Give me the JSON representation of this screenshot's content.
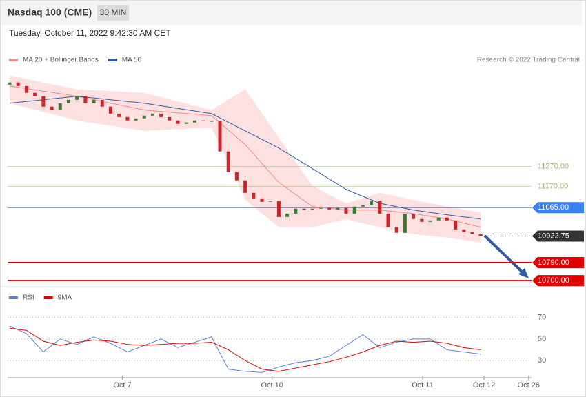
{
  "header": {
    "title": "Nasdaq 100 (CME)",
    "interval": "30 MIN",
    "timestamp": "Tuesday, October 11, 2022 9:42:30 AM CET",
    "credit": "Research © 2022 Trading Central"
  },
  "chart_data": [
    {
      "type": "candlestick",
      "xlim": [
        -0.25,
        62.05
      ],
      "ylim": [
        10690,
        11800
      ],
      "candles": {
        "open": [
          11680,
          11691,
          11673,
          11639,
          11622,
          11570,
          11553,
          11587,
          11604,
          11622,
          11587,
          11604,
          11570,
          11535,
          11518,
          11501,
          11511,
          11525,
          11535,
          11518,
          11501,
          11484,
          11491,
          11501,
          11498,
          11498,
          11346,
          11242,
          11201,
          11139,
          11111,
          11094,
          11098,
          11018,
          11035,
          11060,
          11053,
          11060,
          11063,
          11056,
          11063,
          11035,
          11070,
          11077,
          11098,
          11035,
          10967,
          10939,
          11035,
          11008,
          10994,
          11001,
          11015,
          11001,
          10956,
          10942,
          10932
        ],
        "close": [
          11691,
          11673,
          11639,
          11622,
          11570,
          11553,
          11587,
          11604,
          11622,
          11587,
          11604,
          11570,
          11535,
          11518,
          11501,
          11511,
          11525,
          11535,
          11518,
          11501,
          11484,
          11491,
          11501,
          11498,
          11498,
          11346,
          11242,
          11201,
          11139,
          11111,
          11094,
          11098,
          11018,
          11035,
          11060,
          11053,
          11060,
          11063,
          11056,
          11063,
          11035,
          11070,
          11077,
          11098,
          11035,
          10967,
          10939,
          11035,
          11008,
          10994,
          11001,
          11015,
          11001,
          10956,
          10942,
          10932,
          10923
        ],
        "up_color": "#3a7d34",
        "down_color": "#c9252b"
      },
      "bands": {
        "x": [
          0,
          8,
          16,
          24,
          28,
          32,
          36,
          40,
          44,
          48,
          52,
          56
        ],
        "upper": [
          11725,
          11656,
          11639,
          11553,
          11656,
          11415,
          11173,
          11087,
          11139,
          11104,
          11070,
          11042
        ],
        "lower": [
          11587,
          11501,
          11449,
          11466,
          11104,
          10967,
          10967,
          11008,
          10967,
          10932,
          10915,
          10891
        ],
        "color": "#fdd8d8"
      },
      "series": [
        {
          "name": "MA 20 + Bollinger Bands",
          "color": "#f08a8a",
          "x": [
            0,
            8,
            16,
            24,
            28,
            32,
            36,
            40,
            44,
            48,
            52,
            56
          ],
          "values": [
            11673,
            11622,
            11553,
            11525,
            11380,
            11191,
            11070,
            11053,
            11053,
            11035,
            11008,
            10967
          ]
        },
        {
          "name": "MA 50",
          "color": "#2f5b9e",
          "x": [
            0,
            8,
            16,
            24,
            28,
            32,
            36,
            40,
            44,
            48,
            52,
            56
          ],
          "values": [
            11587,
            11622,
            11587,
            11535,
            11449,
            11363,
            11260,
            11156,
            11087,
            11053,
            11029,
            11008
          ]
        }
      ],
      "levels": [
        {
          "value": 11270,
          "label": "11270.00",
          "color": "#9bbd73",
          "box": false
        },
        {
          "value": 11170,
          "label": "11170.00",
          "color": "#9bbd73",
          "box": false
        },
        {
          "value": 11065,
          "label": "11065.00",
          "color": "#3b82f0",
          "box": true
        },
        {
          "value": 10922.75,
          "label": "10922.75",
          "color": "#333333",
          "box": true
        },
        {
          "value": 10790,
          "label": "10790.00",
          "color": "#e00000",
          "box": true
        },
        {
          "value": 10700,
          "label": "10700.00",
          "color": "#e00000",
          "box": true
        }
      ]
    },
    {
      "type": "line",
      "xlim": [
        -0.25,
        62.05
      ],
      "ylim": [
        16,
        80
      ],
      "yticks": [
        70,
        50,
        30
      ],
      "xticks": [
        {
          "value": 13.4,
          "label": "Oct 7"
        },
        {
          "value": 31.2,
          "label": "Oct 10"
        },
        {
          "value": 49.1,
          "label": "Oct 11"
        },
        {
          "value": 56.4,
          "label": "Oct 12"
        },
        {
          "value": 61.7,
          "label": "Oct 26"
        }
      ],
      "series": [
        {
          "name": "RSI",
          "color": "#5b7fd8",
          "x": [
            0,
            2,
            4,
            6,
            8,
            10,
            12,
            14,
            16,
            18,
            20,
            22,
            24,
            26,
            28,
            30,
            32,
            34,
            36,
            38,
            40,
            42,
            44,
            46,
            48,
            50,
            52,
            54,
            56
          ],
          "values": [
            62,
            55,
            38,
            50,
            45,
            52,
            46,
            38,
            44,
            50,
            42,
            47,
            52,
            22,
            20,
            19,
            24,
            28,
            30,
            34,
            44,
            54,
            42,
            47,
            50,
            50,
            40,
            38,
            36
          ]
        },
        {
          "name": "9MA",
          "color": "#e00000",
          "x": [
            0,
            2,
            4,
            6,
            8,
            10,
            12,
            14,
            16,
            18,
            20,
            22,
            24,
            26,
            28,
            30,
            32,
            34,
            36,
            38,
            40,
            42,
            44,
            46,
            48,
            50,
            52,
            54,
            56
          ],
          "values": [
            60,
            58,
            48,
            44,
            47,
            49,
            48,
            45,
            44,
            45,
            46,
            46,
            47,
            40,
            30,
            22,
            20,
            23,
            26,
            29,
            33,
            38,
            44,
            48,
            47,
            48,
            46,
            42,
            40
          ]
        }
      ]
    }
  ]
}
